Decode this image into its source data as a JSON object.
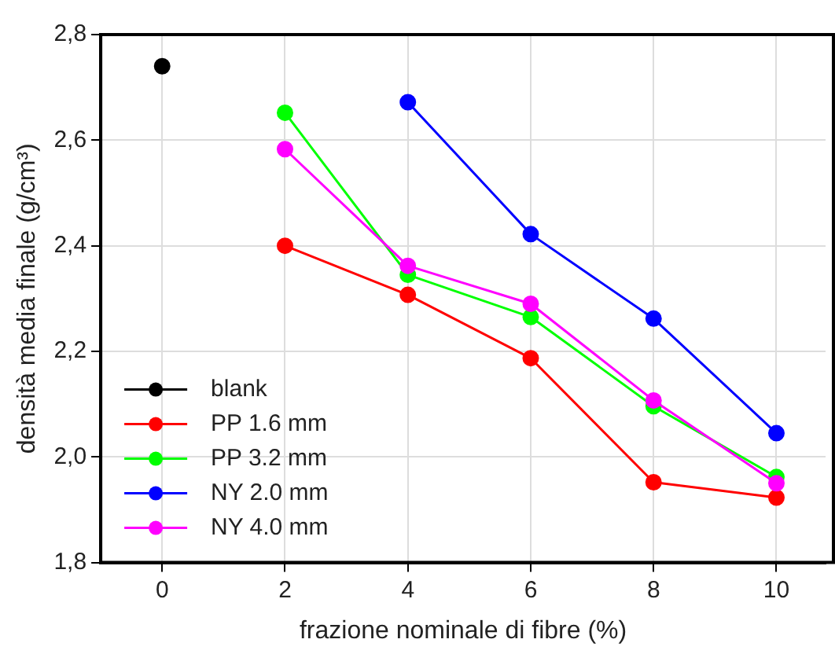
{
  "chart_data": {
    "type": "line",
    "xlabel": "frazione nominale di fibre (%)",
    "ylabel": "densità media finale (g/cm³)",
    "xlim": [
      -1,
      10.8
    ],
    "xticks": [
      0,
      2,
      4,
      6,
      8,
      10
    ],
    "ylim": [
      1.8,
      2.8
    ],
    "yticks": [
      {
        "value": 1.8,
        "label": "1,8"
      },
      {
        "value": 2.0,
        "label": "2,0"
      },
      {
        "value": 2.2,
        "label": "2,2"
      },
      {
        "value": 2.4,
        "label": "2,4"
      },
      {
        "value": 2.6,
        "label": "2,6"
      },
      {
        "value": 2.8,
        "label": "2,8"
      }
    ],
    "grid": true,
    "legend": "bottom left",
    "marker": "circle",
    "line_style": "solid",
    "series": [
      {
        "name": "blank",
        "color": "#000000",
        "x": [
          0
        ],
        "values": [
          2.74
        ]
      },
      {
        "name": "PP 1.6 mm",
        "color": "#ff0000",
        "x": [
          2,
          4,
          6,
          8,
          10
        ],
        "values": [
          2.4,
          2.307,
          2.187,
          1.952,
          1.923
        ]
      },
      {
        "name": "PP 3.2 mm",
        "color": "#00ff00",
        "x": [
          2,
          4,
          6,
          8,
          10
        ],
        "values": [
          2.652,
          2.345,
          2.265,
          2.096,
          1.962
        ]
      },
      {
        "name": "NY 2.0 mm",
        "color": "#0000ff",
        "x": [
          4,
          6,
          8,
          10
        ],
        "values": [
          2.672,
          2.422,
          2.262,
          2.045
        ]
      },
      {
        "name": "NY 4.0 mm",
        "color": "#ff00ff",
        "x": [
          2,
          4,
          6,
          8,
          10
        ],
        "values": [
          2.583,
          2.362,
          2.29,
          2.107,
          1.95
        ]
      }
    ]
  }
}
